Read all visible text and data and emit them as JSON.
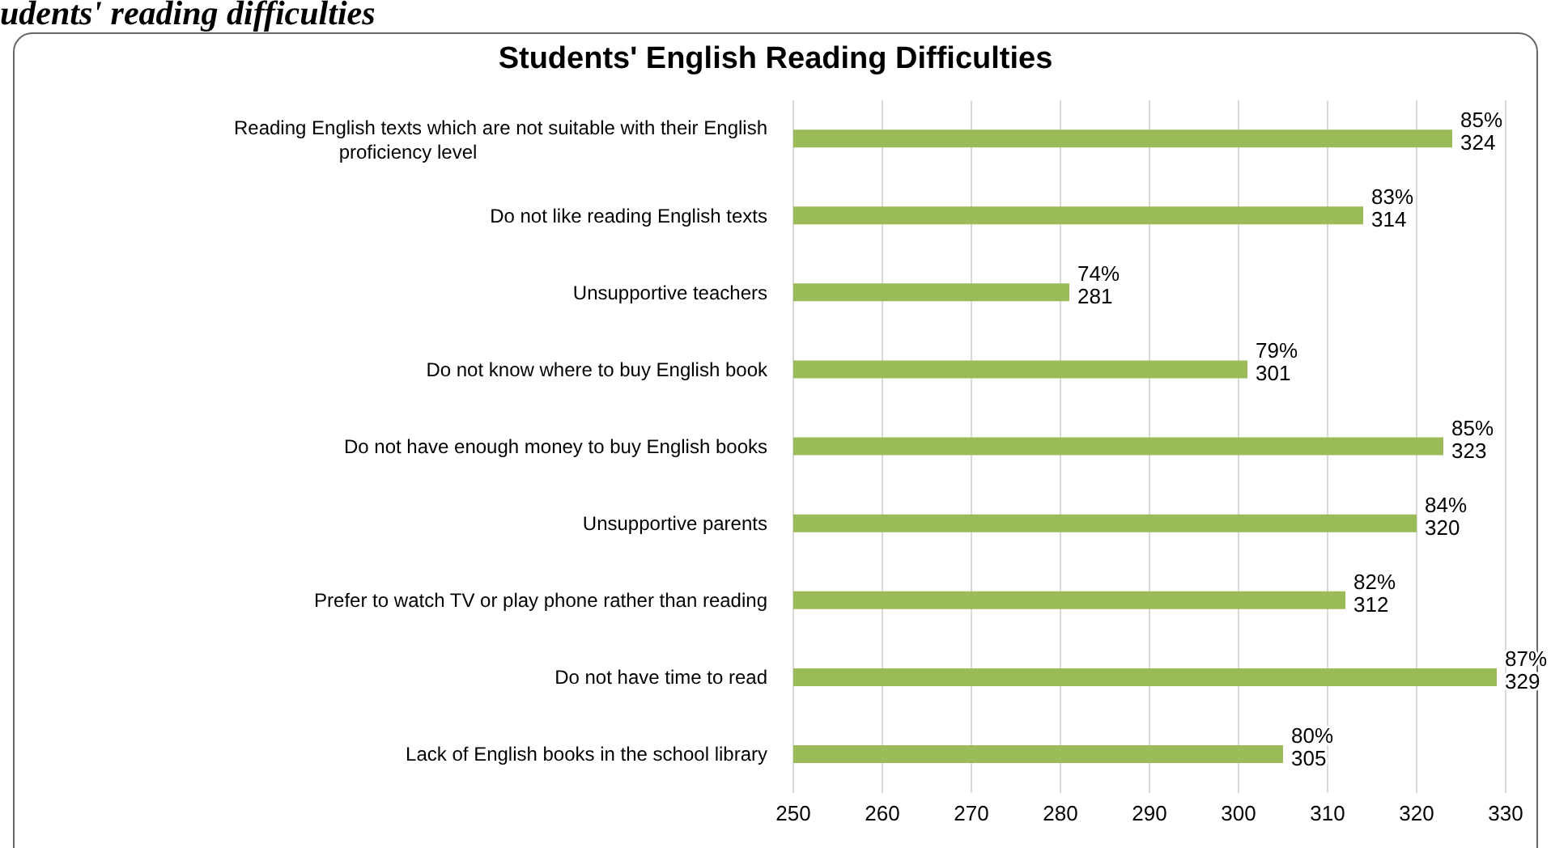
{
  "chart_data": {
    "type": "bar",
    "orientation": "horizontal",
    "title": "Students' English Reading Difficulties",
    "annotations": [
      "udents' reading difficulties"
    ],
    "categories": [
      "Reading English texts which are not suitable with their English proficiency level",
      "Do not like reading English texts",
      "Unsupportive teachers",
      "Do not know where to buy English book",
      "Do not have enough money to buy English books",
      "Unsupportive parents",
      "Prefer to watch TV or play phone rather than reading",
      "Do not have time to read",
      "Lack of English books in the school library"
    ],
    "values": [
      324,
      314,
      281,
      301,
      323,
      320,
      312,
      329,
      305
    ],
    "value_labels": [
      "85%\n324",
      "83%\n314",
      "74%\n281",
      "79%\n301",
      "85%\n323",
      "84%\n320",
      "82%\n312",
      "87%\n329",
      "80%\n305"
    ],
    "color": "#9bbb59",
    "xlim": [
      250,
      330
    ],
    "xticks": [
      250,
      260,
      270,
      280,
      290,
      300,
      310,
      320,
      330
    ],
    "grid": "x"
  }
}
